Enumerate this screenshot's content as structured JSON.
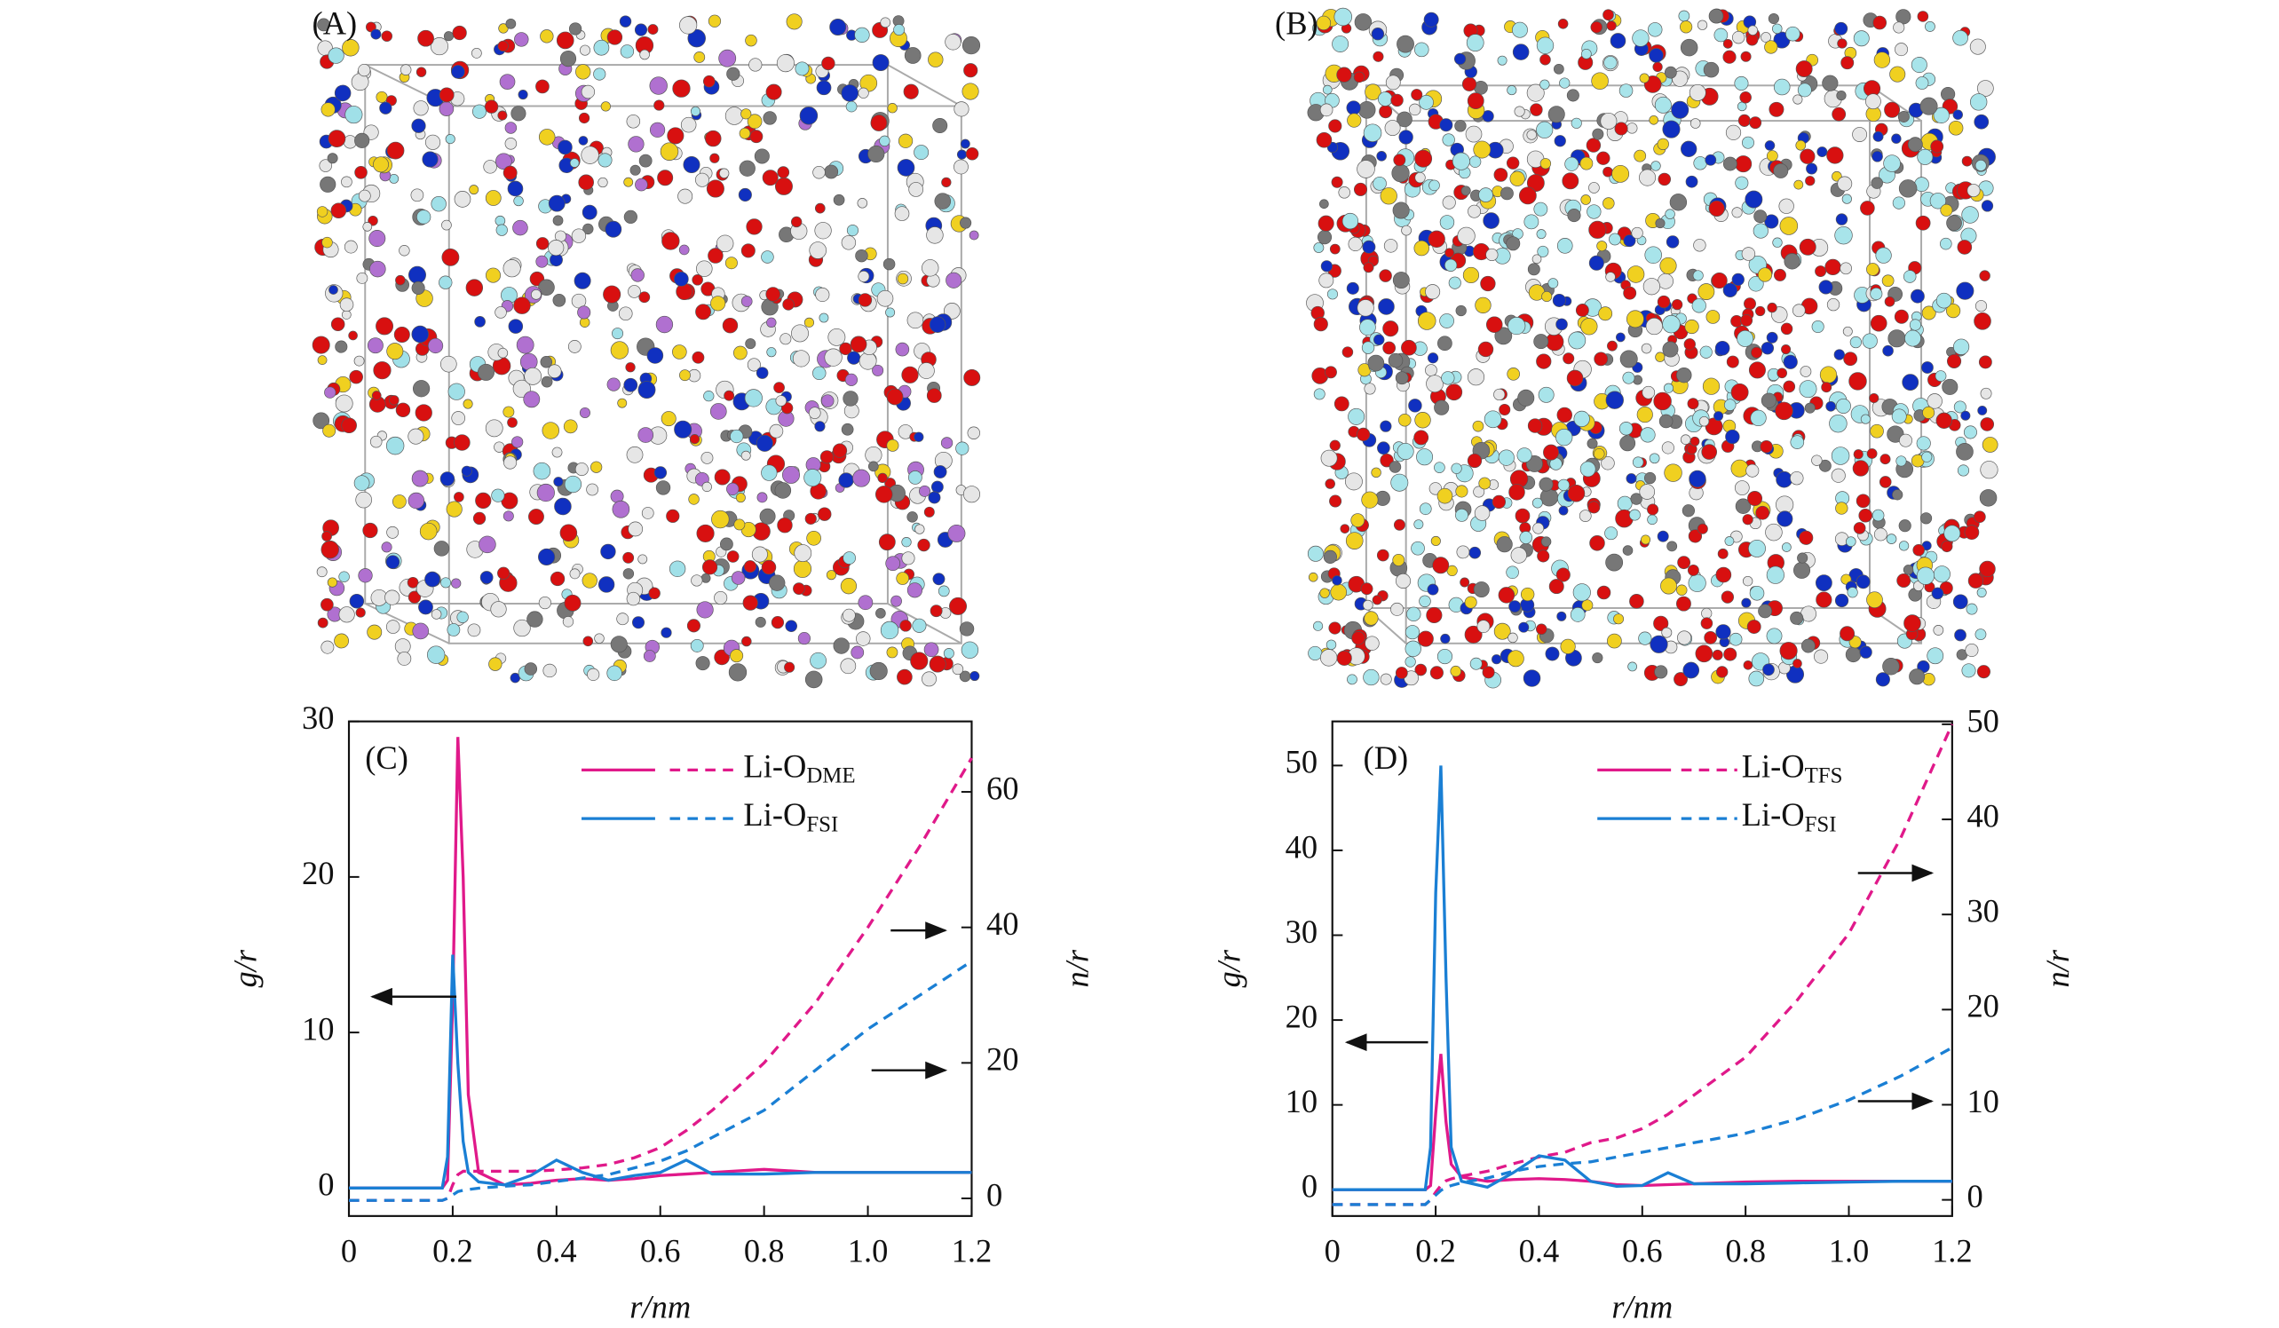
{
  "panels": [
    {
      "label": "(A)"
    },
    {
      "label": "(B)"
    }
  ],
  "chart_data": [
    {
      "type": "line",
      "panel_label": "(C)",
      "xlabel": "r/nm",
      "ylabel": "g/r",
      "y2label": "n/r",
      "x": [
        0,
        0.1,
        0.18,
        0.19,
        0.2,
        0.21,
        0.22,
        0.23,
        0.25,
        0.3,
        0.35,
        0.4,
        0.45,
        0.5,
        0.55,
        0.6,
        0.65,
        0.7,
        0.8,
        0.9,
        1.0,
        1.1,
        1.2
      ],
      "xlim": [
        0,
        1.2
      ],
      "xticks": [
        0,
        0.2,
        0.4,
        0.6,
        0.8,
        {
          "value": 1,
          "label": "1.0"
        },
        1.2
      ],
      "ylim": [
        -1.8,
        30
      ],
      "yticks": [
        0,
        10,
        20,
        30
      ],
      "y2lim": [
        -2.6,
        70.4
      ],
      "y2ticks": [
        0,
        20,
        40,
        60
      ],
      "series": [
        {
          "name": "Li-O",
          "name_sub": "DME",
          "color": "#e0198a",
          "values": [
            0,
            0,
            0,
            0.5,
            12,
            29,
            20,
            6,
            1,
            0.2,
            0.3,
            0.5,
            0.6,
            0.5,
            0.6,
            0.8,
            0.9,
            1.0,
            1.2,
            1.0,
            1.0,
            1.0,
            1.0
          ],
          "n_values": [
            -0.3,
            -0.3,
            -0.3,
            0,
            2,
            3.5,
            4,
            4,
            4,
            4,
            4,
            4.2,
            4.5,
            5,
            6,
            7.5,
            10,
            13,
            20,
            29,
            40,
            52,
            65
          ]
        },
        {
          "name": "Li-O",
          "name_sub": "FSI",
          "color": "#1a7fd4",
          "values": [
            0,
            0,
            0,
            2,
            15,
            8,
            3,
            1,
            0.4,
            0.2,
            0.8,
            1.8,
            1.0,
            0.5,
            0.8,
            1.0,
            1.8,
            0.9,
            0.9,
            1.0,
            1.0,
            1.0,
            1.0
          ],
          "n_values": [
            -0.3,
            -0.3,
            -0.3,
            0,
            0.5,
            1,
            1.2,
            1.3,
            1.5,
            1.8,
            2,
            2.5,
            3,
            3.5,
            4.5,
            5.5,
            7,
            9,
            13,
            19,
            25,
            30,
            35
          ]
        }
      ]
    },
    {
      "type": "line",
      "panel_label": "(D)",
      "xlabel": "r/nm",
      "ylabel": "g/r",
      "y2label": "n/r",
      "x": [
        0,
        0.1,
        0.18,
        0.19,
        0.2,
        0.21,
        0.22,
        0.23,
        0.25,
        0.3,
        0.35,
        0.4,
        0.45,
        0.5,
        0.55,
        0.6,
        0.65,
        0.7,
        0.8,
        0.9,
        1.0,
        1.1,
        1.2
      ],
      "xlim": [
        0,
        1.2
      ],
      "xticks": [
        0,
        0.2,
        0.4,
        0.6,
        0.8,
        {
          "value": 1,
          "label": "1.0"
        },
        1.2
      ],
      "ylim": [
        -3.1,
        55.2
      ],
      "yticks": [
        0,
        10,
        20,
        30,
        40,
        50
      ],
      "y2lim": [
        -1.7,
        50.3
      ],
      "y2ticks": [
        0,
        10,
        20,
        30,
        40,
        50
      ],
      "series": [
        {
          "name": "Li-O",
          "name_sub": "TFS",
          "color": "#e0198a",
          "values": [
            0,
            0,
            0,
            0.5,
            9,
            16,
            8,
            3,
            1.5,
            1,
            1.2,
            1.3,
            1.2,
            1,
            0.6,
            0.5,
            0.6,
            0.7,
            0.9,
            1.0,
            1.0,
            1.0,
            1.0
          ],
          "n_values": [
            -0.5,
            -0.5,
            -0.5,
            0,
            0.8,
            1.5,
            2,
            2.2,
            2.5,
            3,
            3.8,
            4.5,
            5,
            6,
            6.5,
            7.5,
            9,
            11,
            15,
            21,
            28,
            38,
            50
          ]
        },
        {
          "name": "Li-O",
          "name_sub": "FSI",
          "color": "#1a7fd4",
          "values": [
            0,
            0,
            0,
            5,
            35,
            50,
            25,
            5,
            1,
            0.3,
            2,
            4,
            3.5,
            1,
            0.4,
            0.5,
            2,
            0.7,
            0.7,
            0.8,
            0.9,
            1,
            1
          ],
          "n_values": [
            -0.5,
            -0.5,
            -0.5,
            0,
            0.5,
            1,
            1.3,
            1.5,
            1.8,
            2.3,
            3,
            3.5,
            3.8,
            4,
            4.5,
            5,
            5.5,
            6,
            7,
            8.5,
            10.5,
            13,
            16
          ]
        }
      ]
    }
  ]
}
